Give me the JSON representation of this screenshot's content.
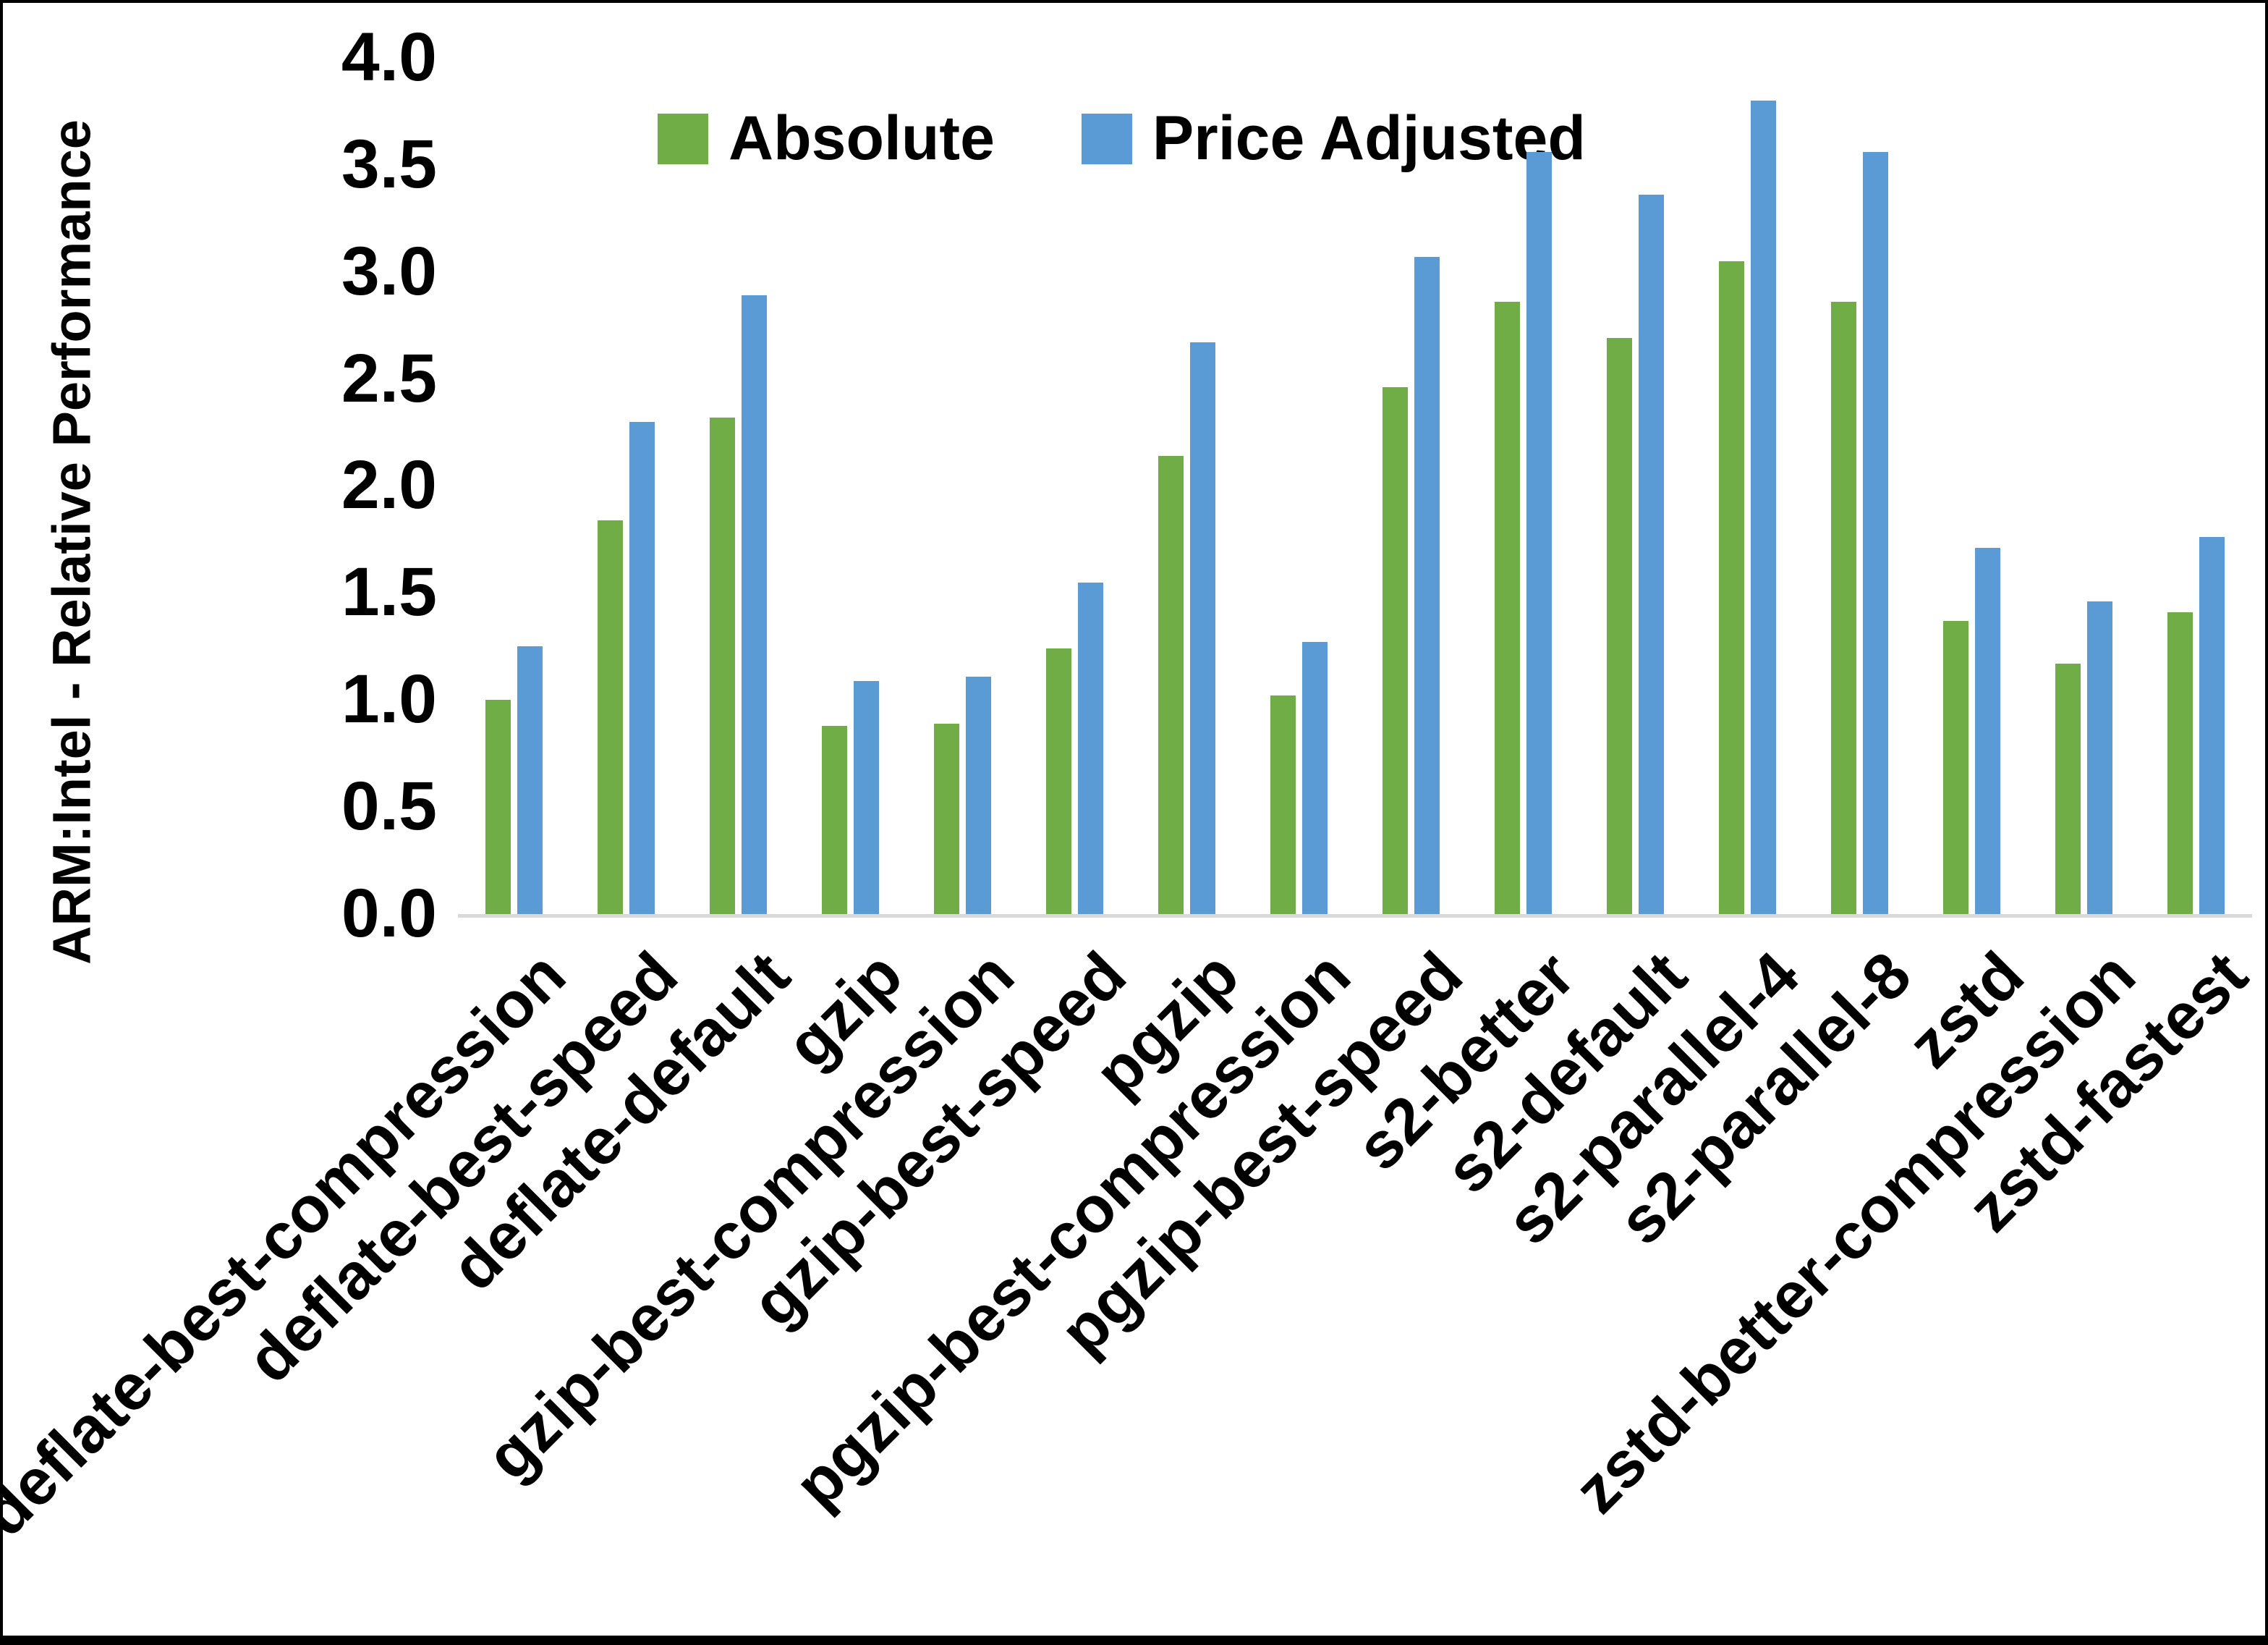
{
  "figure": {
    "ylabel": "ARM:Intel - Relative Performance",
    "background": "#FFFFFF",
    "border_color": "#000000",
    "axis_line_color": "#D9D9D9",
    "text_color": "#000000"
  },
  "chart_data": {
    "type": "bar",
    "title": "",
    "xlabel": "",
    "ylabel": "ARM:Intel - Relative Performance",
    "ylim": [
      0,
      4
    ],
    "ytick_step": 0.5,
    "yticks": [
      "0.0",
      "0.5",
      "1.0",
      "1.5",
      "2.0",
      "2.5",
      "3.0",
      "3.5",
      "4.0"
    ],
    "grid": false,
    "legend_position": "top-center",
    "categories": [
      "deflate-best-compression",
      "deflate-best-speed",
      "deflate-default",
      "gzip",
      "gzip-best-compression",
      "gzip-best-speed",
      "pgzip",
      "pgzip-best-compression",
      "pgzip-best-speed",
      "s2-better",
      "s2-default",
      "s2-parallel-4",
      "s2-parallel-8",
      "zstd",
      "zstd-better-compression",
      "zstd-fastest"
    ],
    "series": [
      {
        "name": "Absolute",
        "color": "#70AD47",
        "values": [
          1.0,
          1.84,
          2.32,
          0.88,
          0.89,
          1.24,
          2.14,
          1.02,
          2.46,
          2.86,
          2.69,
          3.05,
          2.86,
          1.37,
          1.17,
          1.41
        ]
      },
      {
        "name": "Price Adjusted",
        "color": "#5B9BD5",
        "values": [
          1.25,
          2.3,
          2.89,
          1.09,
          1.11,
          1.55,
          2.67,
          1.27,
          3.07,
          3.56,
          3.36,
          3.8,
          3.56,
          1.71,
          1.46,
          1.76
        ]
      }
    ]
  }
}
